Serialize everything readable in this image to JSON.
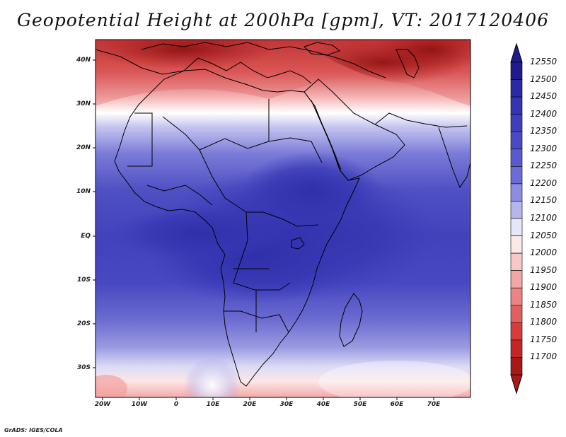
{
  "title": "Geopotential Height at 200hPa [gpm], VT: 2017120406",
  "variable": "Geopotential Height",
  "level": "200hPa",
  "units": "gpm",
  "valid_time": "2017120406",
  "latitude_labels": [
    "40N",
    "30N",
    "20N",
    "10N",
    "EQ",
    "10S",
    "20S",
    "30S"
  ],
  "longitude_labels": [
    "20W",
    "10W",
    "0",
    "10E",
    "20E",
    "30E",
    "40E",
    "50E",
    "60E",
    "70E"
  ],
  "colorbar": {
    "labels": [
      "12550",
      "12500",
      "12450",
      "12400",
      "12350",
      "12300",
      "12250",
      "12200",
      "12150",
      "12100",
      "12050",
      "12000",
      "11950",
      "11900",
      "11850",
      "11800",
      "11750",
      "11700"
    ],
    "colors": [
      "#1f1a8e",
      "#2a2aa6",
      "#3434b4",
      "#3e3ebe",
      "#4a4ac6",
      "#5a5ad0",
      "#6c6cd8",
      "#8c8ce2",
      "#b6b6ee",
      "#e6e6fa",
      "#fde8e8",
      "#f8c8c8",
      "#f3a6a6",
      "#ec8282",
      "#e45e5e",
      "#d63c3c",
      "#c42626",
      "#a81818"
    ]
  },
  "credit": "GrADS: IGES/COLA"
}
